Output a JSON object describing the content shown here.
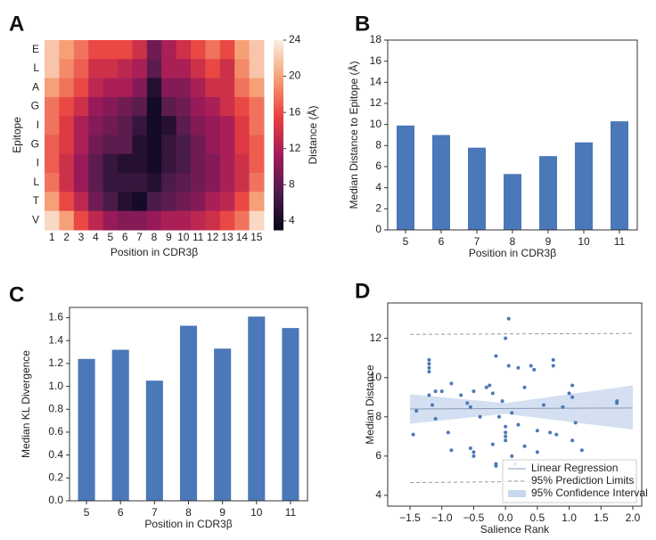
{
  "chart_data": [
    {
      "type": "heatmap",
      "panel": "A",
      "x_label": "Position in CDR3β",
      "y_label": "Epitope",
      "colorbar_label": "Distance (Å)",
      "x_categories": [
        "1",
        "2",
        "3",
        "4",
        "5",
        "6",
        "7",
        "8",
        "9",
        "10",
        "11",
        "12",
        "13",
        "14",
        "15"
      ],
      "y_categories": [
        "E",
        "L",
        "A",
        "G",
        "I",
        "G",
        "I",
        "L",
        "T",
        "V"
      ],
      "values": [
        [
          22,
          20,
          18,
          16,
          16,
          16,
          14,
          9,
          12,
          14,
          16,
          18,
          16,
          20,
          22
        ],
        [
          22,
          19,
          17,
          14,
          14,
          13,
          12,
          8,
          12,
          12,
          14,
          16,
          14,
          19,
          22
        ],
        [
          20,
          18,
          16,
          13,
          12,
          12,
          10,
          5,
          10,
          10,
          12,
          14,
          14,
          18,
          20
        ],
        [
          18,
          16,
          14,
          11,
          10,
          9,
          8,
          4,
          8,
          9,
          11,
          12,
          14,
          16,
          18
        ],
        [
          18,
          15,
          12,
          10,
          9,
          8,
          6,
          4,
          5,
          8,
          10,
          11,
          12,
          15,
          18
        ],
        [
          17,
          15,
          12,
          9,
          8,
          8,
          5,
          4,
          6,
          7,
          9,
          11,
          12,
          15,
          17
        ],
        [
          17,
          14,
          11,
          8,
          6,
          5,
          5,
          4,
          6,
          7,
          9,
          10,
          12,
          14,
          17
        ],
        [
          18,
          14,
          11,
          8,
          6,
          6,
          6,
          5,
          7,
          8,
          9,
          10,
          12,
          14,
          18
        ],
        [
          20,
          16,
          13,
          9,
          7,
          5,
          4,
          7,
          8,
          9,
          10,
          12,
          13,
          16,
          20
        ],
        [
          23,
          20,
          16,
          13,
          11,
          10,
          10,
          11,
          12,
          12,
          13,
          14,
          16,
          18,
          23
        ]
      ],
      "colormap": "rocket",
      "clim": [
        3,
        24
      ],
      "cticks": [
        4,
        8,
        12,
        16,
        20,
        24
      ]
    },
    {
      "type": "bar",
      "panel": "B",
      "x_label": "Position in CDR3β",
      "y_label": "Median Distance to Epitope (Å)",
      "categories": [
        "5",
        "6",
        "7",
        "8",
        "9",
        "10",
        "11"
      ],
      "values": [
        9.9,
        9.0,
        7.8,
        5.3,
        7.0,
        8.3,
        10.3
      ],
      "color": "#4a78b8",
      "ylim": [
        0,
        18
      ],
      "yticks": [
        0,
        2,
        4,
        6,
        8,
        10,
        12,
        14,
        16,
        18
      ]
    },
    {
      "type": "bar",
      "panel": "C",
      "x_label": "Position in CDR3β",
      "y_label": "Median KL Divergence",
      "categories": [
        "5",
        "6",
        "7",
        "8",
        "9",
        "10",
        "11"
      ],
      "values": [
        1.24,
        1.32,
        1.05,
        1.53,
        1.33,
        1.61,
        1.51
      ],
      "color": "#4a78b8",
      "ylim": [
        0,
        1.69
      ],
      "yticks": [
        {
          "value": 0,
          "label": "0.0"
        },
        0.2,
        0.4,
        0.6,
        0.8,
        {
          "value": 1,
          "label": "1.0"
        },
        1.2,
        1.4,
        1.6
      ]
    },
    {
      "type": "scatter",
      "panel": "D",
      "x_label": "Salience Rank",
      "y_label": "Median Distance",
      "color": "#4a78b8",
      "x": [
        -1.45,
        -1.4,
        -1.2,
        -1.2,
        -1.2,
        -1.2,
        -1.2,
        -1.15,
        -1.1,
        -1.1,
        -1.0,
        -0.9,
        -0.85,
        -0.85,
        -0.7,
        -0.6,
        -0.55,
        -0.5,
        -0.5,
        -0.55,
        -0.5,
        -0.4,
        -0.3,
        -0.25,
        -0.2,
        -0.2,
        -0.15,
        -0.15,
        -0.15,
        -0.1,
        -0.05,
        0.0,
        0.0,
        0.0,
        0.0,
        0.0,
        0.05,
        0.05,
        0.1,
        0.1,
        0.15,
        0.2,
        0.2,
        0.3,
        0.3,
        0.4,
        0.45,
        0.5,
        0.5,
        0.6,
        0.7,
        0.75,
        0.75,
        0.8,
        0.9,
        1.0,
        1.05,
        1.05,
        1.05,
        1.1,
        1.2,
        1.75,
        1.75
      ],
      "values": [
        7.1,
        8.3,
        10.9,
        10.7,
        10.5,
        10.3,
        9.1,
        8.6,
        9.3,
        7.9,
        9.3,
        7.2,
        9.7,
        6.3,
        9.1,
        8.7,
        6.4,
        6.2,
        6.0,
        8.5,
        9.3,
        8.0,
        9.5,
        9.6,
        9.2,
        6.6,
        11.1,
        5.5,
        5.6,
        8.0,
        8.8,
        7.5,
        7.2,
        6.8,
        7.0,
        12.0,
        13.0,
        10.6,
        8.2,
        6.0,
        5.6,
        7.6,
        10.5,
        9.5,
        6.5,
        10.6,
        10.4,
        7.3,
        6.2,
        8.6,
        7.2,
        10.9,
        10.6,
        7.1,
        8.5,
        9.2,
        9.0,
        9.6,
        6.8,
        7.7,
        6.3,
        8.8,
        8.7
      ],
      "series": [
        {
          "name": "Linear Regression",
          "color": "#8a9bb8",
          "dash": false,
          "x": [
            -1.5,
            2.0
          ],
          "values": [
            8.4,
            8.45
          ]
        },
        {
          "name": "95% Prediction Limits",
          "color": "#999999",
          "dash": true,
          "x": [
            -1.5,
            2.0
          ],
          "values": [
            12.2,
            12.25
          ]
        },
        {
          "name": "95% Prediction Limits",
          "color": "#999999",
          "dash": true,
          "x": [
            -1.5,
            2.0
          ],
          "values": [
            4.65,
            4.75
          ]
        }
      ],
      "band": {
        "name": "95% Confidence Interval",
        "color": "#c9d8ee",
        "x": [
          -1.5,
          0,
          2.0
        ],
        "lower": [
          7.65,
          8.15,
          7.35
        ],
        "upper": [
          9.15,
          8.7,
          9.6
        ]
      },
      "legend": "lower right",
      "xlim": [
        -1.85,
        2.14
      ],
      "ylim": [
        3.45,
        13.8
      ],
      "xticks": [
        {
          "value": -1.5,
          "label": "−1.5"
        },
        {
          "value": -1,
          "label": "−1.0"
        },
        {
          "value": -0.5,
          "label": "−0.5"
        },
        {
          "value": 0,
          "label": "0.0"
        },
        0.5,
        {
          "value": 1,
          "label": "1.0"
        },
        1.5,
        {
          "value": 2,
          "label": "2.0"
        }
      ],
      "yticks": [
        4,
        6,
        8,
        10,
        12
      ]
    }
  ]
}
